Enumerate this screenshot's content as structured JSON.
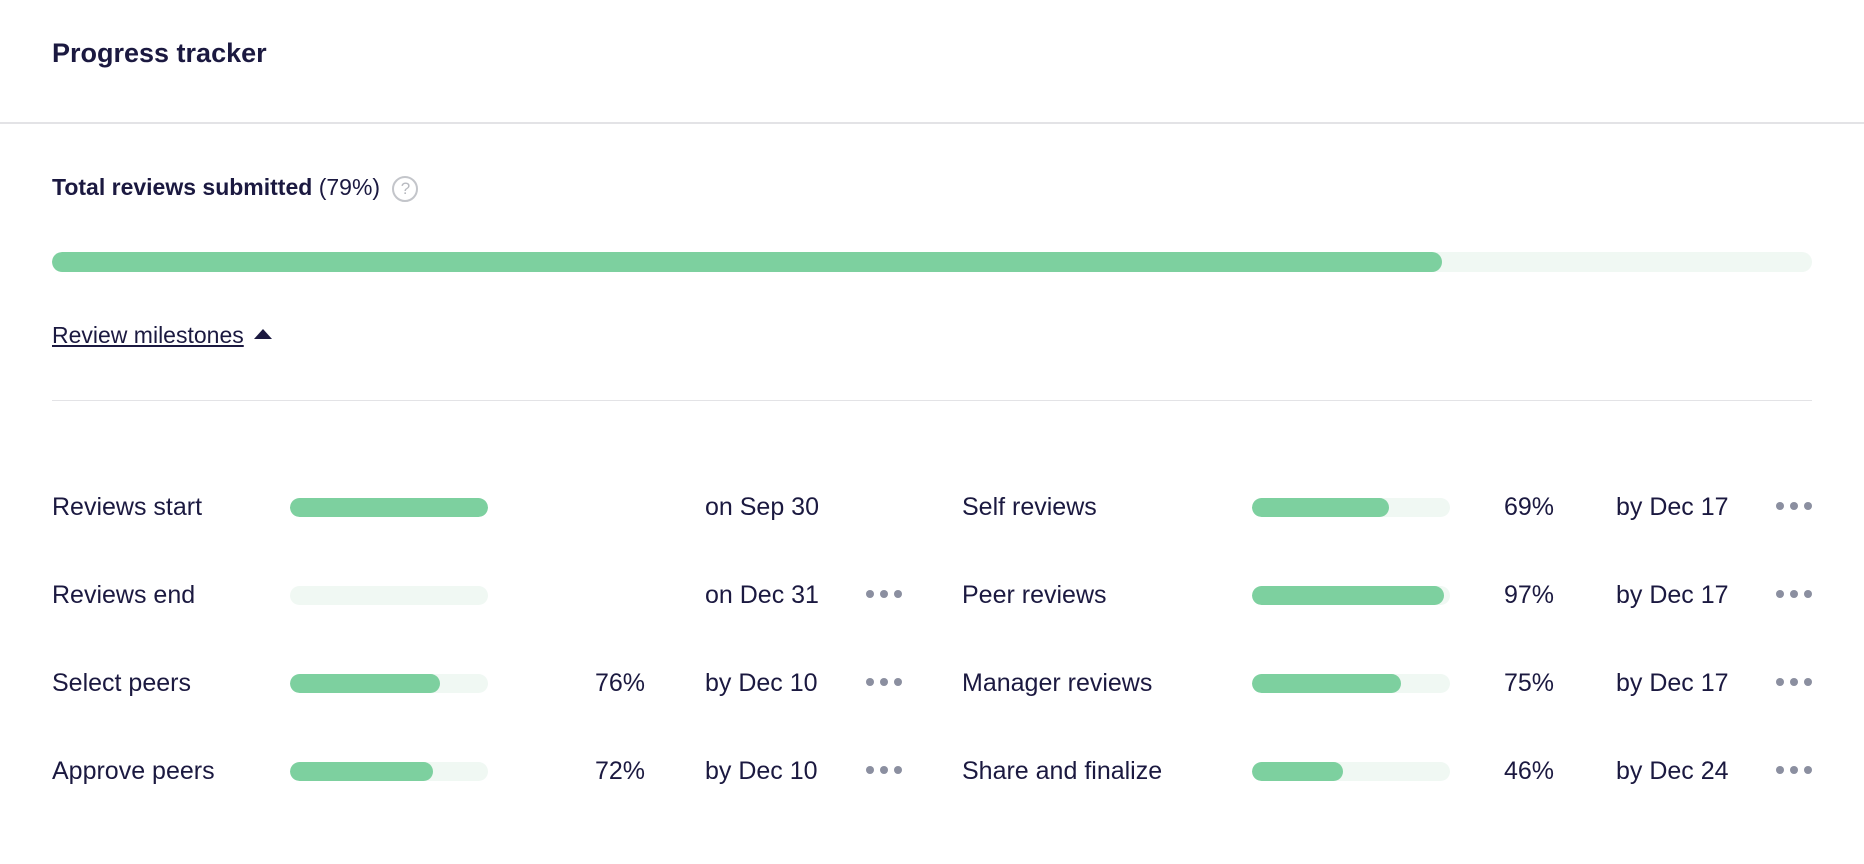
{
  "header": {
    "title": "Progress tracker"
  },
  "total": {
    "label": "Total reviews submitted",
    "percent_text": "(79%)",
    "help_icon": "?",
    "progress": 79
  },
  "milestones_toggle": {
    "label": "Review milestones"
  },
  "colors": {
    "fill": "#7dd09f",
    "track": "#f0f8f3",
    "text": "#1b1940"
  },
  "left": [
    {
      "label": "Reviews start",
      "progress": 100,
      "percent": "",
      "date": "on Sep 30",
      "menu": false
    },
    {
      "label": "Reviews end",
      "progress": 0,
      "percent": "",
      "date": "on Dec 31",
      "menu": true
    },
    {
      "label": "Select peers",
      "progress": 76,
      "percent": "76%",
      "date": "by Dec 10",
      "menu": true
    },
    {
      "label": "Approve peers",
      "progress": 72,
      "percent": "72%",
      "date": "by Dec 10",
      "menu": true
    }
  ],
  "right": [
    {
      "label": "Self reviews",
      "progress": 69,
      "percent": "69%",
      "date": "by Dec 17",
      "menu": true
    },
    {
      "label": "Peer reviews",
      "progress": 97,
      "percent": "97%",
      "date": "by Dec 17",
      "menu": true
    },
    {
      "label": "Manager reviews",
      "progress": 75,
      "percent": "75%",
      "date": "by Dec 17",
      "menu": true
    },
    {
      "label": "Share and finalize",
      "progress": 46,
      "percent": "46%",
      "date": "by Dec 24",
      "menu": true
    }
  ]
}
